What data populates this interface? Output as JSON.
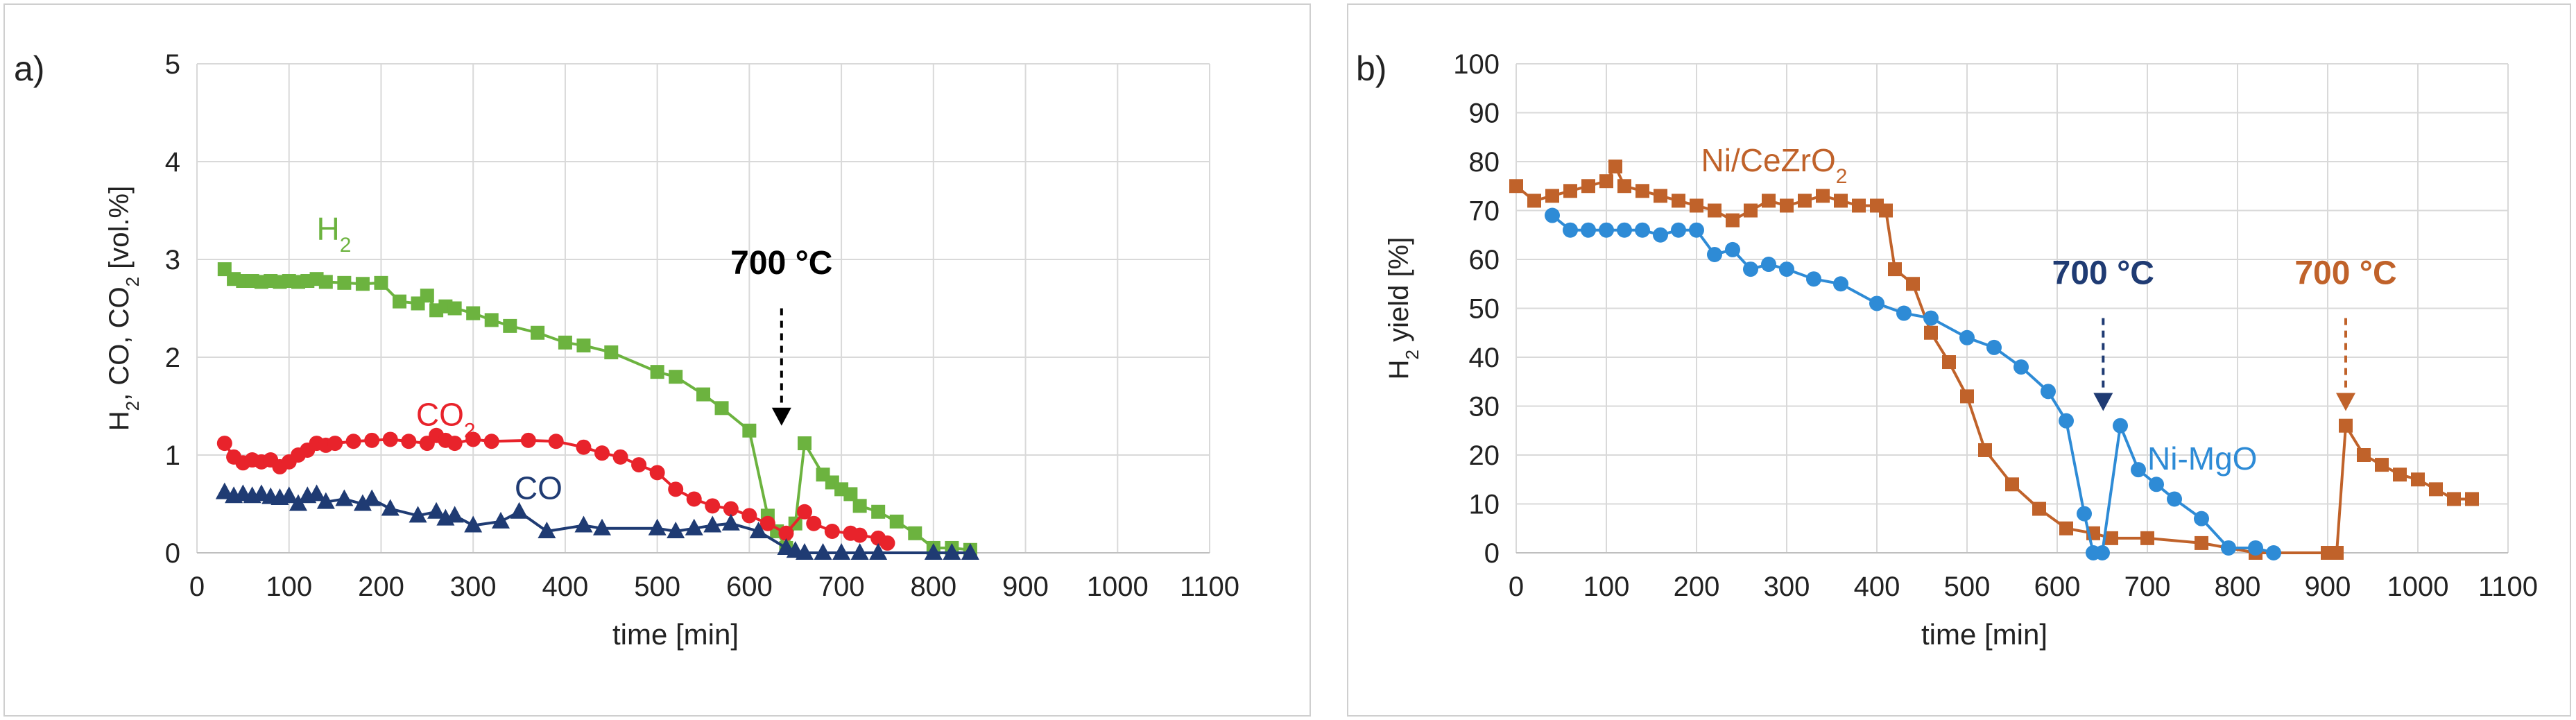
{
  "charts": [
    {
      "panel_label": "a)",
      "chart_data": {
        "type": "line",
        "title": "",
        "xlabel": "time [min]",
        "ylabel_parts": [
          [
            "H",
            ""
          ],
          [
            "2",
            "sub"
          ],
          [
            ", CO, CO",
            ""
          ],
          [
            "2",
            "sub"
          ],
          [
            " [vol.%]",
            ""
          ]
        ],
        "xlim": [
          0,
          1100
        ],
        "ylim": [
          0,
          5
        ],
        "xticks": [
          "0",
          "100",
          "200",
          "300",
          "400",
          "500",
          "600",
          "700",
          "800",
          "900",
          "1000",
          "1100"
        ],
        "yticks": [
          "0",
          "1",
          "2",
          "3",
          "4",
          "5"
        ],
        "grid": true,
        "series": [
          {
            "label_parts": [
              [
                "H",
                ""
              ],
              [
                "2",
                "sub"
              ]
            ],
            "color": "#6cb33f",
            "marker": "square",
            "label_pos": [
              130,
              3.2
            ],
            "x": [
              30,
              40,
              50,
              60,
              70,
              80,
              90,
              100,
              110,
              120,
              130,
              140,
              160,
              180,
              200,
              220,
              240,
              250,
              260,
              270,
              280,
              300,
              320,
              340,
              370,
              400,
              420,
              450,
              500,
              520,
              550,
              570,
              600,
              620,
              630,
              640,
              650,
              660,
              680,
              690,
              700,
              710,
              720,
              740,
              760,
              780,
              800,
              820,
              840
            ],
            "y": [
              2.9,
              2.8,
              2.78,
              2.78,
              2.77,
              2.78,
              2.77,
              2.78,
              2.77,
              2.78,
              2.8,
              2.77,
              2.76,
              2.75,
              2.76,
              2.57,
              2.55,
              2.63,
              2.48,
              2.52,
              2.5,
              2.45,
              2.38,
              2.32,
              2.25,
              2.15,
              2.12,
              2.05,
              1.85,
              1.8,
              1.62,
              1.48,
              1.25,
              0.38,
              0.22,
              0.05,
              0.3,
              1.12,
              0.8,
              0.72,
              0.65,
              0.6,
              0.48,
              0.42,
              0.32,
              0.2,
              0.05,
              0.05,
              0.03
            ]
          },
          {
            "label_parts": [
              [
                "CO",
                ""
              ],
              [
                "2",
                "sub"
              ]
            ],
            "color": "#e8232b",
            "marker": "circle",
            "label_pos": [
              238,
              1.3
            ],
            "x": [
              30,
              40,
              50,
              60,
              70,
              80,
              90,
              100,
              110,
              120,
              130,
              140,
              150,
              170,
              190,
              210,
              230,
              250,
              260,
              270,
              280,
              300,
              320,
              360,
              390,
              420,
              440,
              460,
              480,
              500,
              520,
              540,
              560,
              580,
              600,
              620,
              640,
              660,
              670,
              690,
              710,
              720,
              740,
              750
            ],
            "y": [
              1.12,
              0.98,
              0.92,
              0.95,
              0.93,
              0.95,
              0.88,
              0.93,
              1.0,
              1.05,
              1.12,
              1.1,
              1.12,
              1.14,
              1.15,
              1.16,
              1.14,
              1.12,
              1.2,
              1.15,
              1.12,
              1.16,
              1.14,
              1.15,
              1.14,
              1.08,
              1.02,
              0.98,
              0.9,
              0.82,
              0.65,
              0.55,
              0.48,
              0.45,
              0.38,
              0.3,
              0.2,
              0.42,
              0.3,
              0.22,
              0.2,
              0.18,
              0.15,
              0.1
            ]
          },
          {
            "label": "CO",
            "color": "#1f3b73",
            "marker": "triangle",
            "label_pos": [
              345,
              0.55
            ],
            "x": [
              30,
              40,
              50,
              60,
              70,
              80,
              90,
              100,
              110,
              120,
              130,
              140,
              160,
              180,
              190,
              210,
              240,
              260,
              270,
              280,
              300,
              330,
              350,
              380,
              420,
              440,
              500,
              520,
              540,
              560,
              580,
              610,
              640,
              650,
              660,
              680,
              700,
              720,
              740,
              800,
              820,
              840
            ],
            "y": [
              0.62,
              0.58,
              0.6,
              0.58,
              0.6,
              0.57,
              0.56,
              0.58,
              0.5,
              0.58,
              0.6,
              0.52,
              0.55,
              0.5,
              0.55,
              0.45,
              0.38,
              0.42,
              0.35,
              0.38,
              0.28,
              0.32,
              0.42,
              0.22,
              0.28,
              0.25,
              0.25,
              0.22,
              0.25,
              0.28,
              0.3,
              0.22,
              0.05,
              0.02,
              0.0,
              0.0,
              0.0,
              0.0,
              0.0,
              0.0,
              0.0,
              0.0
            ]
          }
        ],
        "annotations": [
          {
            "text": "700 °C",
            "color": "#000000",
            "x": 635,
            "text_y": 2.85,
            "arrow_from": 2.5,
            "arrow_to": 1.3
          }
        ]
      }
    },
    {
      "panel_label": "b)",
      "chart_data": {
        "type": "line",
        "title": "",
        "xlabel": "time [min]",
        "ylabel_parts": [
          [
            "H",
            ""
          ],
          [
            "2",
            "sub"
          ],
          [
            " yield [%]",
            ""
          ]
        ],
        "xlim": [
          0,
          1100
        ],
        "ylim": [
          0,
          100
        ],
        "xticks": [
          "0",
          "100",
          "200",
          "300",
          "400",
          "500",
          "600",
          "700",
          "800",
          "900",
          "1000",
          "1100"
        ],
        "yticks": [
          "0",
          "10",
          "20",
          "30",
          "40",
          "50",
          "60",
          "70",
          "80",
          "90",
          "100"
        ],
        "grid": true,
        "series": [
          {
            "label_parts": [
              [
                "Ni/CeZrO",
                ""
              ],
              [
                "2",
                "sub"
              ]
            ],
            "color": "#c0622a",
            "marker": "square",
            "label_pos": [
              205,
              78
            ],
            "x": [
              0,
              20,
              40,
              60,
              80,
              100,
              110,
              120,
              140,
              160,
              180,
              200,
              220,
              240,
              260,
              280,
              300,
              320,
              340,
              360,
              380,
              400,
              410,
              420,
              440,
              460,
              480,
              500,
              520,
              550,
              580,
              610,
              640,
              660,
              700,
              760,
              820,
              900,
              910,
              920,
              940,
              960,
              980,
              1000,
              1020,
              1040,
              1060
            ],
            "y": [
              75,
              72,
              73,
              74,
              75,
              76,
              79,
              75,
              74,
              73,
              72,
              71,
              70,
              68,
              70,
              72,
              71,
              72,
              73,
              72,
              71,
              71,
              70,
              58,
              55,
              45,
              39,
              32,
              21,
              14,
              9,
              5,
              4,
              3,
              3,
              2,
              0,
              0,
              0,
              26,
              20,
              18,
              16,
              15,
              13,
              11,
              11
            ]
          },
          {
            "label": "Ni-MgO",
            "color": "#2e8bd6",
            "marker": "circle",
            "label_pos": [
              700,
              17
            ],
            "x": [
              40,
              60,
              80,
              100,
              120,
              140,
              160,
              180,
              200,
              220,
              240,
              260,
              280,
              300,
              330,
              360,
              400,
              430,
              460,
              500,
              530,
              560,
              590,
              610,
              630,
              640,
              650,
              670,
              690,
              710,
              730,
              760,
              790,
              820,
              840
            ],
            "y": [
              69,
              66,
              66,
              66,
              66,
              66,
              65,
              66,
              66,
              61,
              62,
              58,
              59,
              58,
              56,
              55,
              51,
              49,
              48,
              44,
              42,
              38,
              33,
              27,
              8,
              0,
              0,
              26,
              17,
              14,
              11,
              7,
              1,
              1,
              0
            ]
          }
        ],
        "annotations": [
          {
            "text": "700 °C",
            "color": "#1f3b73",
            "x": 651,
            "text_y": 55,
            "arrow_from": 48,
            "arrow_to": 29
          },
          {
            "text": "700 °C",
            "color": "#c0622a",
            "x": 920,
            "text_y": 55,
            "arrow_from": 48,
            "arrow_to": 29
          }
        ]
      }
    }
  ]
}
